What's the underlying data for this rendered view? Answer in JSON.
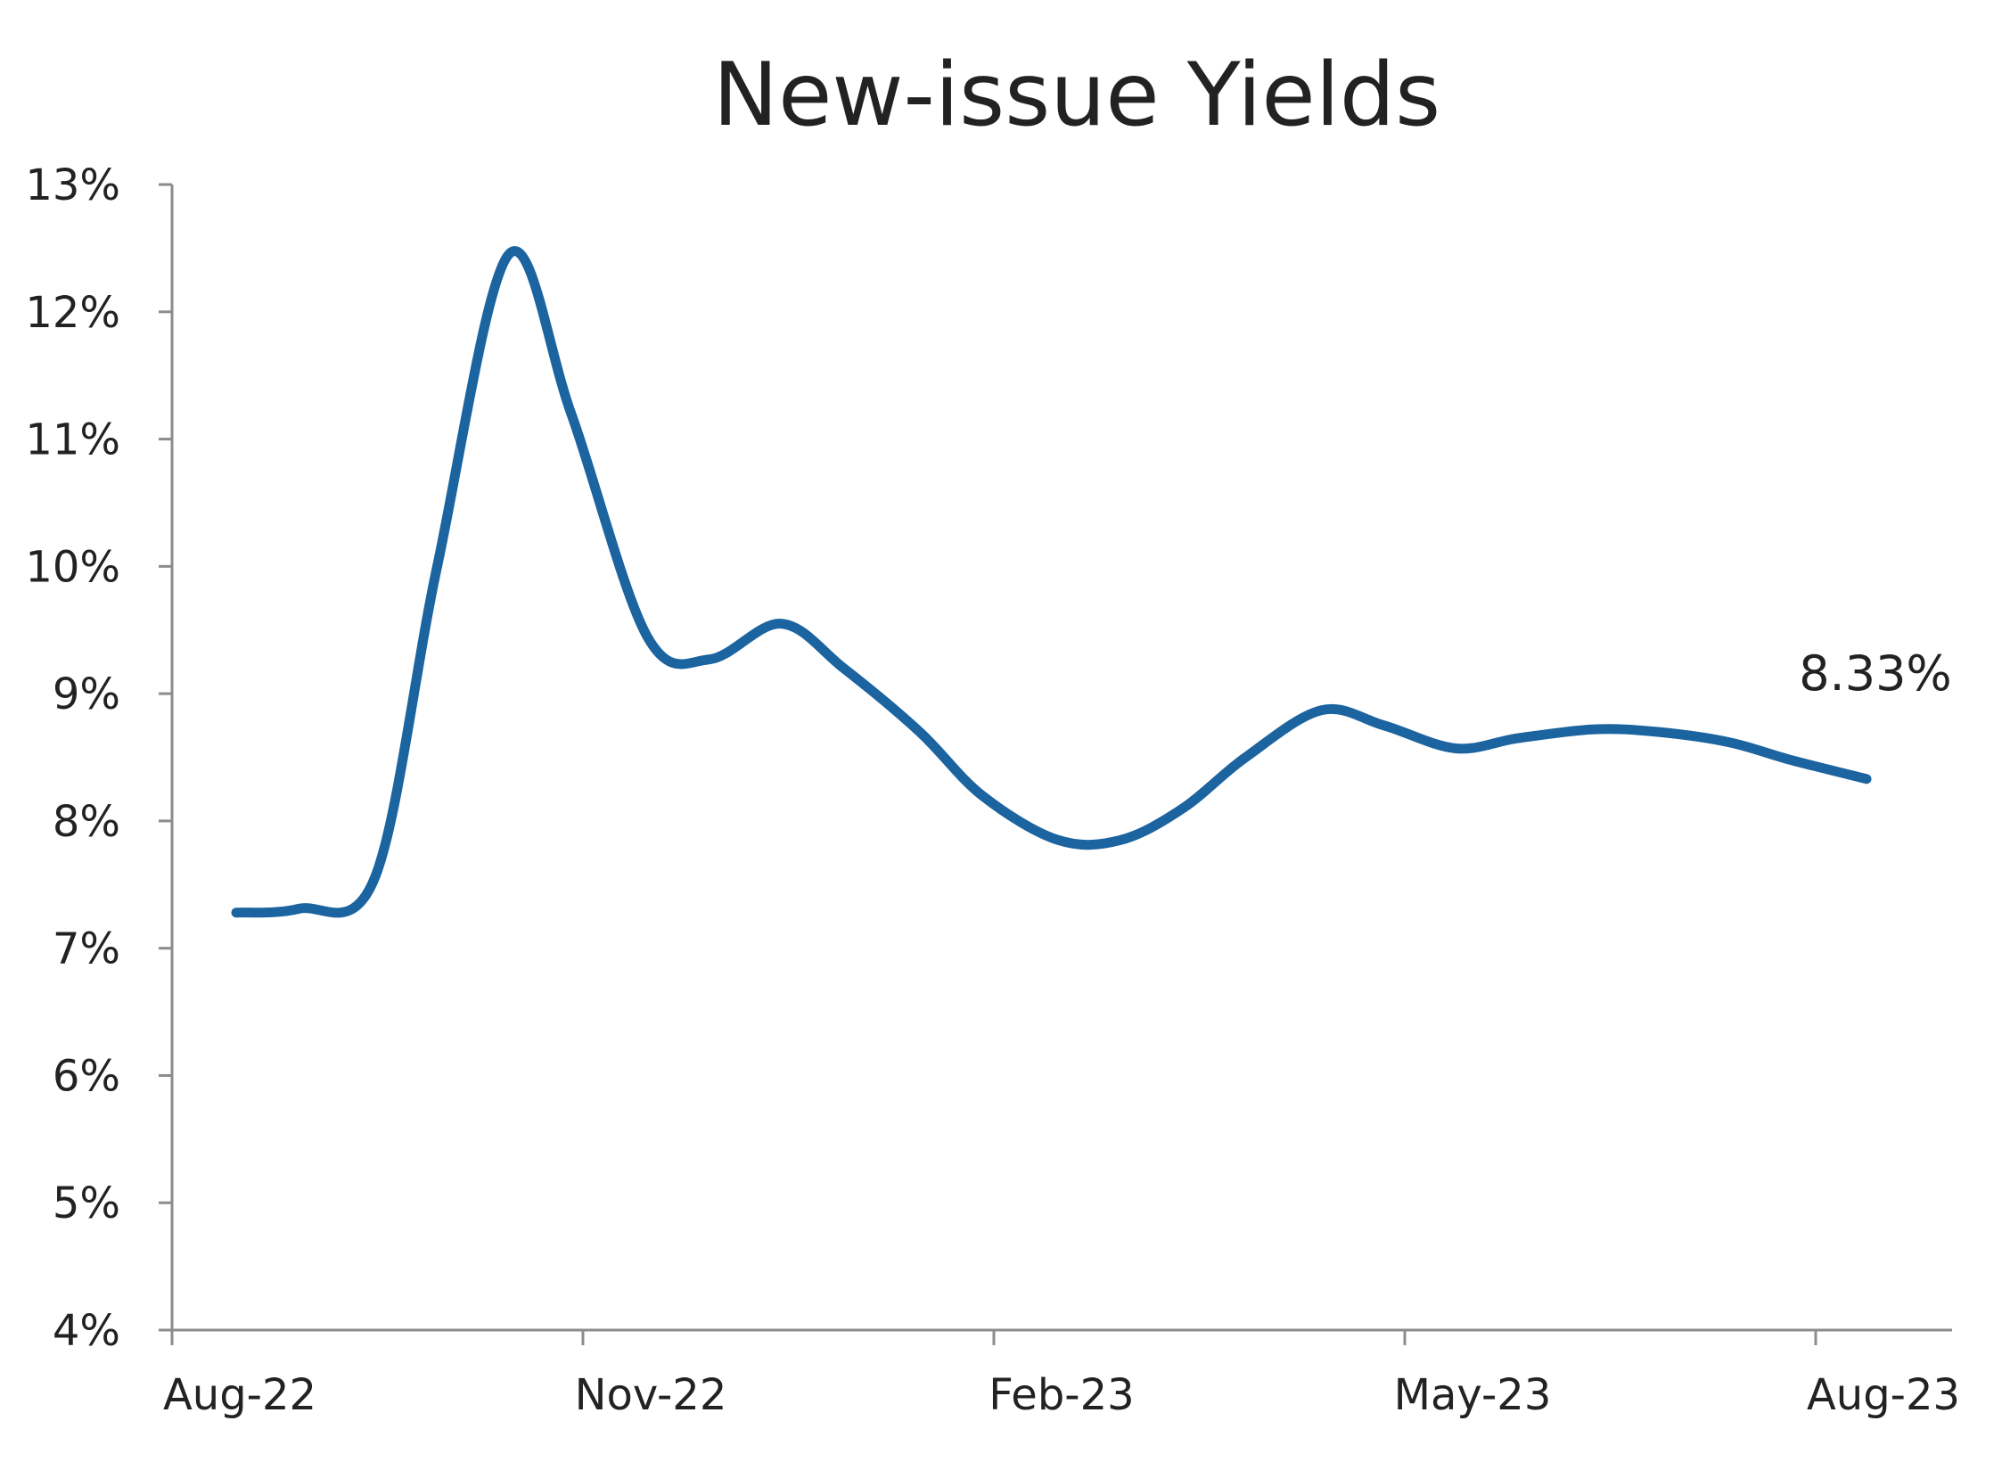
{
  "chart_data": {
    "type": "line",
    "title": "New-issue Yields",
    "xlabel": "",
    "ylabel": "",
    "x": [
      "2022-08-01",
      "2022-08-15",
      "2022-09-01",
      "2022-09-15",
      "2022-10-01",
      "2022-10-15",
      "2022-11-01",
      "2022-11-15",
      "2022-12-01",
      "2022-12-15",
      "2023-01-01",
      "2023-01-15",
      "2023-02-01",
      "2023-02-15",
      "2023-03-01",
      "2023-03-15",
      "2023-04-01",
      "2023-04-15",
      "2023-05-01",
      "2023-05-15",
      "2023-06-01",
      "2023-06-15",
      "2023-07-01",
      "2023-07-15",
      "2023-08-01"
    ],
    "series": [
      {
        "values": [
          7.28,
          7.31,
          7.55,
          10.0,
          12.45,
          11.2,
          9.45,
          9.27,
          9.55,
          9.2,
          8.7,
          8.2,
          7.85,
          7.85,
          8.1,
          8.5,
          8.87,
          8.75,
          8.57,
          8.65,
          8.72,
          8.7,
          8.62,
          8.48,
          8.33
        ],
        "color": "#1b64a0"
      }
    ],
    "x_ticks": [
      "Aug-22",
      "Nov-22",
      "Feb-23",
      "May-23",
      "Aug-23"
    ],
    "y_ticks": [
      "4%",
      "5%",
      "6%",
      "7%",
      "8%",
      "9%",
      "10%",
      "11%",
      "12%",
      "13%"
    ],
    "ylim": [
      4,
      13
    ],
    "grid": false,
    "legend": "none",
    "annotation": "8.33%"
  }
}
